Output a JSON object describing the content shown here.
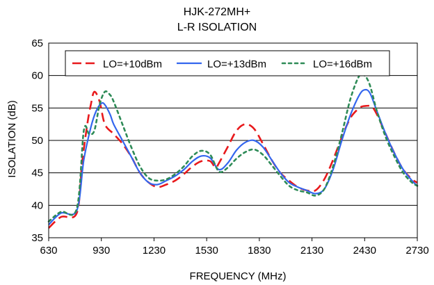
{
  "chart_data": {
    "type": "line",
    "title": "HJK-272MH+",
    "subtitle": "L-R ISOLATION",
    "xlabel": "FREQUENCY (MHz)",
    "ylabel": "ISOLATION (dB)",
    "xlim": [
      630,
      2730
    ],
    "ylim": [
      35,
      65
    ],
    "xticks": [
      630,
      930,
      1230,
      1530,
      1830,
      2130,
      2430,
      2730
    ],
    "yticks": [
      35,
      40,
      45,
      50,
      55,
      60,
      65
    ],
    "grid": "horizontal",
    "legend_position": "top",
    "series": [
      {
        "name": "LO=+10dBm",
        "color": "#e8191c",
        "dash": "long-dash",
        "x": [
          630,
          700,
          790,
          820,
          850,
          870,
          890,
          920,
          950,
          1000,
          1050,
          1100,
          1150,
          1200,
          1250,
          1300,
          1350,
          1400,
          1450,
          1500,
          1550,
          1580,
          1600,
          1650,
          1700,
          1750,
          1800,
          1850,
          1900,
          1950,
          2000,
          2050,
          2100,
          2150,
          2200,
          2250,
          2300,
          2350,
          2400,
          2430,
          2470,
          2500,
          2550,
          2600,
          2650,
          2700,
          2730
        ],
        "y": [
          36.5,
          38.2,
          38.8,
          46.5,
          52.5,
          55.5,
          57.5,
          56.0,
          52.5,
          51.0,
          49.5,
          47.5,
          45.0,
          43.5,
          42.8,
          43.2,
          43.8,
          44.8,
          46.0,
          46.8,
          46.8,
          45.8,
          46.5,
          49.0,
          51.5,
          52.5,
          51.8,
          49.5,
          47.0,
          45.0,
          43.8,
          42.8,
          42.3,
          42.3,
          44.0,
          47.0,
          50.5,
          53.5,
          55.0,
          55.3,
          55.2,
          54.0,
          51.0,
          48.0,
          45.5,
          44.0,
          43.5
        ]
      },
      {
        "name": "LO=+13dBm",
        "color": "#3366ee",
        "dash": "solid",
        "x": [
          630,
          700,
          790,
          830,
          870,
          900,
          930,
          950,
          980,
          1000,
          1050,
          1100,
          1150,
          1200,
          1250,
          1300,
          1350,
          1400,
          1450,
          1500,
          1550,
          1600,
          1650,
          1700,
          1750,
          1800,
          1850,
          1900,
          1950,
          2000,
          2050,
          2100,
          2150,
          2200,
          2250,
          2300,
          2350,
          2400,
          2430,
          2460,
          2500,
          2550,
          2600,
          2650,
          2700,
          2730
        ],
        "y": [
          37.0,
          38.8,
          39.2,
          47.0,
          52.0,
          54.5,
          55.7,
          55.5,
          54.0,
          52.5,
          50.0,
          47.5,
          45.0,
          43.5,
          43.2,
          43.8,
          44.5,
          45.5,
          46.8,
          47.6,
          47.3,
          45.5,
          46.5,
          48.5,
          49.7,
          50.0,
          49.0,
          47.0,
          45.0,
          43.5,
          42.8,
          42.3,
          41.8,
          42.5,
          45.5,
          50.0,
          54.0,
          57.0,
          57.8,
          57.3,
          54.5,
          51.0,
          48.0,
          45.5,
          43.8,
          43.0
        ]
      },
      {
        "name": "LO=+16dBm",
        "color": "#2e8b57",
        "dash": "dot",
        "x": [
          630,
          700,
          790,
          830,
          860,
          890,
          920,
          950,
          980,
          1000,
          1050,
          1100,
          1150,
          1200,
          1250,
          1300,
          1350,
          1400,
          1450,
          1500,
          1550,
          1600,
          1650,
          1700,
          1750,
          1800,
          1850,
          1900,
          1950,
          2000,
          2050,
          2100,
          2150,
          2200,
          2250,
          2300,
          2350,
          2400,
          2430,
          2460,
          2500,
          2550,
          2600,
          2650,
          2700,
          2730
        ],
        "y": [
          37.5,
          39.0,
          39.5,
          51.5,
          51.0,
          51.5,
          55.5,
          57.5,
          57.0,
          56.0,
          52.5,
          49.0,
          46.0,
          44.2,
          43.8,
          44.0,
          44.8,
          46.0,
          47.6,
          48.4,
          47.8,
          45.2,
          45.8,
          47.2,
          48.2,
          48.6,
          47.8,
          46.2,
          44.5,
          43.0,
          42.3,
          42.0,
          41.5,
          42.5,
          46.0,
          51.0,
          56.5,
          60.0,
          60.0,
          58.5,
          54.5,
          50.5,
          47.5,
          45.0,
          43.5,
          43.0
        ]
      }
    ]
  }
}
